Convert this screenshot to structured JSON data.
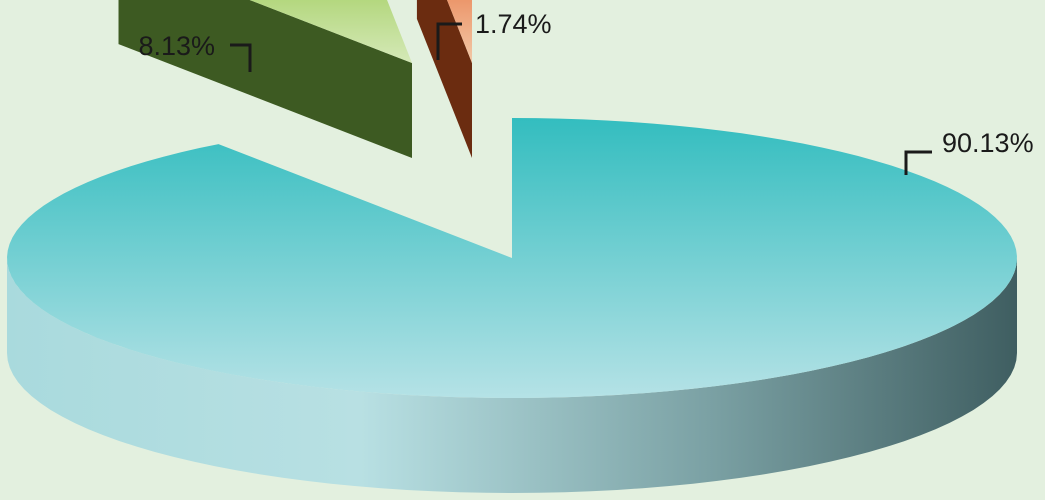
{
  "chart_data": {
    "type": "pie",
    "style": "3d-exploded",
    "slices": [
      {
        "label": "90.13%",
        "value": 90.13,
        "color": "#3bbcc0"
      },
      {
        "label": "8.13%",
        "value": 8.13,
        "color": "#8dc43c"
      },
      {
        "label": "1.74%",
        "value": 1.74,
        "color": "#e8602a"
      }
    ],
    "legend": "none",
    "grid": false,
    "background": "#e3f0df"
  }
}
